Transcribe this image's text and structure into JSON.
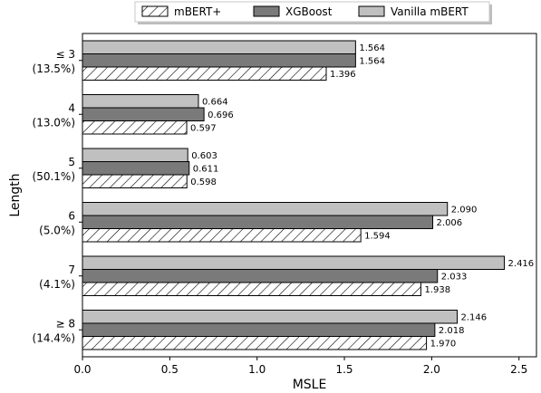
{
  "chart_data": {
    "type": "bar",
    "orientation": "horizontal",
    "categories": [
      {
        "line1": "≤ 3",
        "line2": "(13.5%)"
      },
      {
        "line1": "4",
        "line2": "(13.0%)"
      },
      {
        "line1": "5",
        "line2": "(50.1%)"
      },
      {
        "line1": "6",
        "line2": "(5.0%)"
      },
      {
        "line1": "7",
        "line2": "(4.1%)"
      },
      {
        "line1": "≥ 8",
        "line2": "(14.4%)"
      }
    ],
    "series": [
      {
        "name": "Vanilla mBERT",
        "color": "#c0c0c0",
        "pattern": "solid",
        "values": [
          1.564,
          0.664,
          0.603,
          2.09,
          2.416,
          2.146
        ],
        "labels": [
          "1.564",
          "0.664",
          "0.603",
          "2.090",
          "2.416",
          "2.146"
        ]
      },
      {
        "name": "XGBoost",
        "color": "#7a7a7a",
        "pattern": "solid",
        "values": [
          1.564,
          0.696,
          0.611,
          2.006,
          2.033,
          2.018
        ],
        "labels": [
          "1.564",
          "0.696",
          "0.611",
          "2.006",
          "2.033",
          "2.018"
        ]
      },
      {
        "name": "mBERT+",
        "color": "#ffffff",
        "pattern": "hatch",
        "values": [
          1.396,
          0.597,
          0.598,
          1.594,
          1.938,
          1.97
        ],
        "labels": [
          "1.396",
          "0.597",
          "0.598",
          "1.594",
          "1.938",
          "1.970"
        ]
      }
    ],
    "legend_order": [
      "mBERT+",
      "XGBoost",
      "Vanilla mBERT"
    ],
    "legend_position": "top-center",
    "xlabel": "MSLE",
    "ylabel": "Length",
    "xlim": [
      0,
      2.6
    ],
    "xticks": [
      0.0,
      0.5,
      1.0,
      1.5,
      2.0,
      2.5
    ],
    "xtick_labels": [
      "0.0",
      "0.5",
      "1.0",
      "1.5",
      "2.0",
      "2.5"
    ],
    "grid": false
  }
}
